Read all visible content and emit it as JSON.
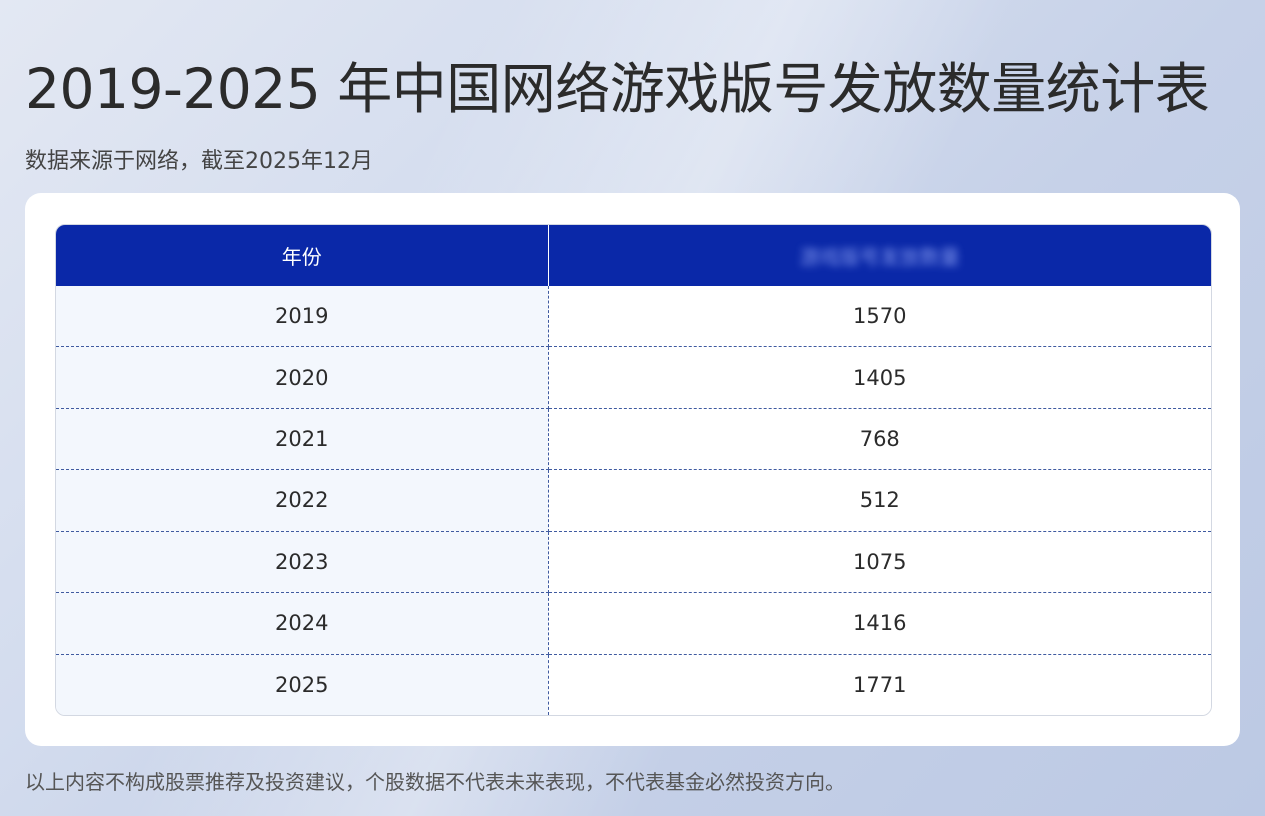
{
  "page": {
    "title": "2019-2025 年中国网络游戏版号发放数量统计表",
    "subtitle": "数据来源于网络，截至2025年12月",
    "footer": "以上内容不构成股票推荐及投资建议，个股数据不代表未来表现，不代表基金必然投资方向。"
  },
  "table": {
    "headers": [
      "年份",
      "游戏版号发放数量"
    ],
    "rows": [
      [
        "2019",
        "1570"
      ],
      [
        "2020",
        "1405"
      ],
      [
        "2021",
        "768"
      ],
      [
        "2022",
        "512"
      ],
      [
        "2023",
        "1075"
      ],
      [
        "2024",
        "1416"
      ],
      [
        "2025",
        "1771"
      ]
    ]
  },
  "colors": {
    "header_bg": "#0a28a8",
    "year_col_bg": "#f3f7fd",
    "divider": "#3f5aa0"
  }
}
